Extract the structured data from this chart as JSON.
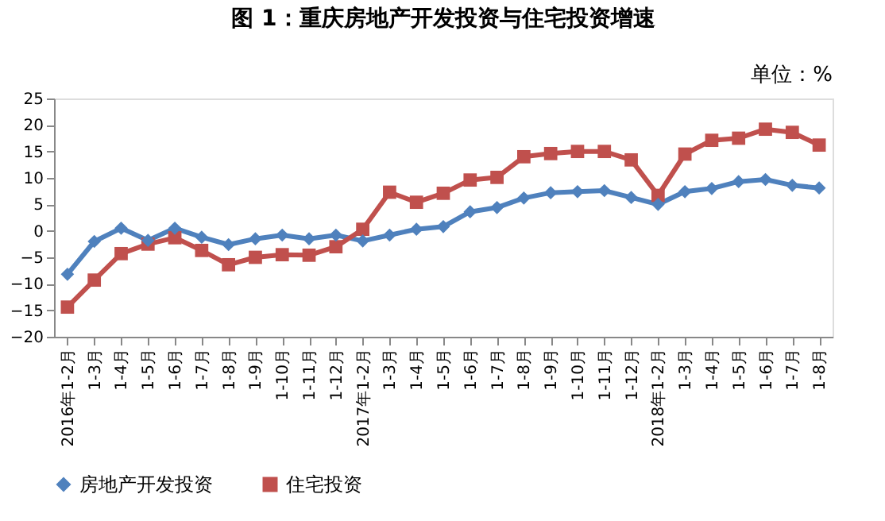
{
  "chart_data": {
    "type": "line",
    "title": "图 1：重庆房地产开发投资与住宅投资增速",
    "annotations": [
      "单位：%"
    ],
    "categories": [
      "2016年1-2月",
      "1-3月",
      "1-4月",
      "1-5月",
      "1-6月",
      "1-7月",
      "1-8月",
      "1-9月",
      "1-10月",
      "1-11月",
      "1-12月",
      "2017年1-2月",
      "1-3月",
      "1-4月",
      "1-5月",
      "1-6月",
      "1-7月",
      "1-8月",
      "1-9月",
      "1-10月",
      "1-11月",
      "1-12月",
      "2018年1-2月",
      "1-3月",
      "1-4月",
      "1-5月",
      "1-6月",
      "1-7月",
      "1-8月"
    ],
    "series": [
      {
        "name": "房地产开发投资",
        "color": "#4f81bd",
        "marker": "diamond",
        "values": [
          -8.2,
          -2,
          0.5,
          -1.8,
          0.5,
          -1.2,
          -2.6,
          -1.5,
          -0.8,
          -1.5,
          -0.8,
          -1.9,
          -0.8,
          0.3,
          0.8,
          3.6,
          4.4,
          6.2,
          7.2,
          7.4,
          7.6,
          6.3,
          5.0,
          7.4,
          8.0,
          9.3,
          9.7,
          8.6,
          8.1
        ]
      },
      {
        "name": "住宅投资",
        "color": "#c0504d",
        "marker": "square",
        "values": [
          -14.4,
          -9.3,
          -4.3,
          -2.5,
          -1.3,
          -3.7,
          -6.4,
          -5.0,
          -4.5,
          -4.6,
          -3.0,
          0.3,
          7.3,
          5.4,
          7.1,
          9.6,
          10.1,
          14.0,
          14.6,
          15.0,
          15.0,
          13.4,
          6.7,
          14.5,
          17.1,
          17.5,
          19.2,
          18.6,
          16.2
        ]
      }
    ],
    "ylim": [
      -20,
      25
    ],
    "yticks": [
      -20,
      -15,
      -10,
      -5,
      0,
      5,
      10,
      15,
      20,
      25
    ],
    "grid": false,
    "legend": "bottom"
  }
}
